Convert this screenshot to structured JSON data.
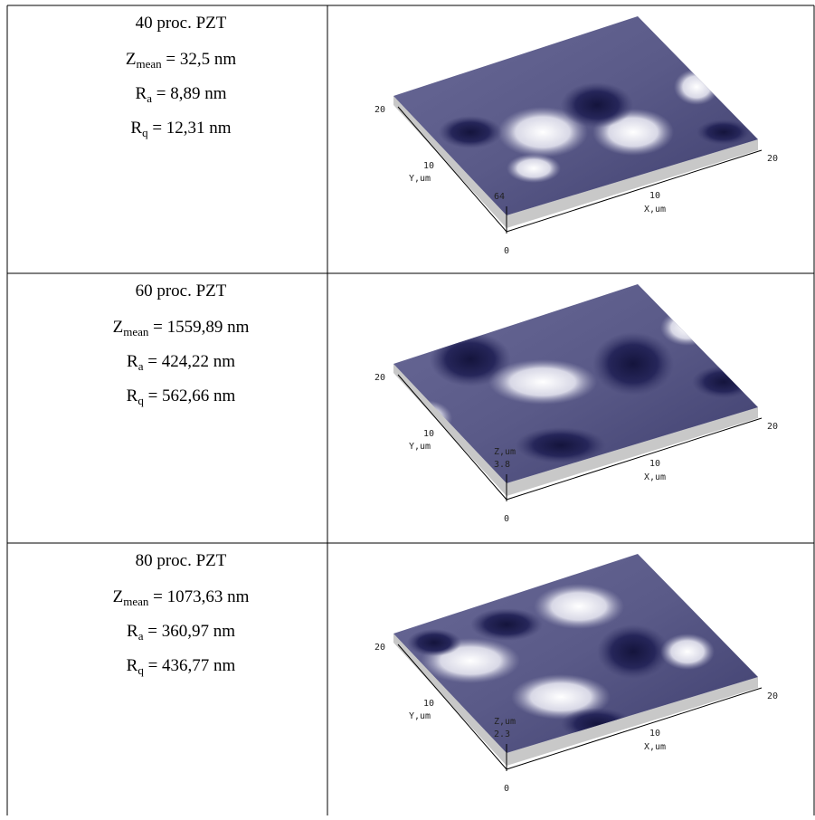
{
  "table": {
    "rows": [
      {
        "title": "40 proc. PZT",
        "stats": [
          {
            "symbol": "Z",
            "sub": "mean",
            "text": "= 32,5 nm"
          },
          {
            "symbol": "R",
            "sub": "a",
            "text": "= 8,89 nm"
          },
          {
            "symbol": "R",
            "sub": "q",
            "text": "= 12,31 nm"
          }
        ],
        "plot": {
          "y_max": "20",
          "y_mid": "10",
          "y_label": "Y,um",
          "x_mid": "10",
          "x_label": "X,um",
          "x_max": "20",
          "origin": "0",
          "z_max": "64"
        }
      },
      {
        "title": "60 proc. PZT",
        "stats": [
          {
            "symbol": "Z",
            "sub": "mean",
            "text": "= 1559,89 nm"
          },
          {
            "symbol": "R",
            "sub": "a",
            "text": "= 424,22 nm"
          },
          {
            "symbol": "R",
            "sub": "q",
            "text": "= 562,66 nm"
          }
        ],
        "plot": {
          "y_max": "20",
          "y_mid": "10",
          "y_label": "Y,um",
          "x_mid": "10",
          "x_label": "X,um",
          "x_max": "20",
          "origin": "0",
          "z_label": "Z,um",
          "z_max": "3.8"
        }
      },
      {
        "title": "80 proc. PZT",
        "stats": [
          {
            "symbol": "Z",
            "sub": "mean",
            "text": "= 1073,63 nm"
          },
          {
            "symbol": "R",
            "sub": "a",
            "text": "= 360,97 nm"
          },
          {
            "symbol": "R",
            "sub": "q",
            "text": "= 436,77 nm"
          }
        ],
        "plot": {
          "y_max": "20",
          "y_mid": "10",
          "y_label": "Y,um",
          "x_mid": "10",
          "x_label": "X,um",
          "x_max": "20",
          "origin": "0",
          "z_label": "Z,um",
          "z_max": "2.3"
        }
      }
    ]
  }
}
